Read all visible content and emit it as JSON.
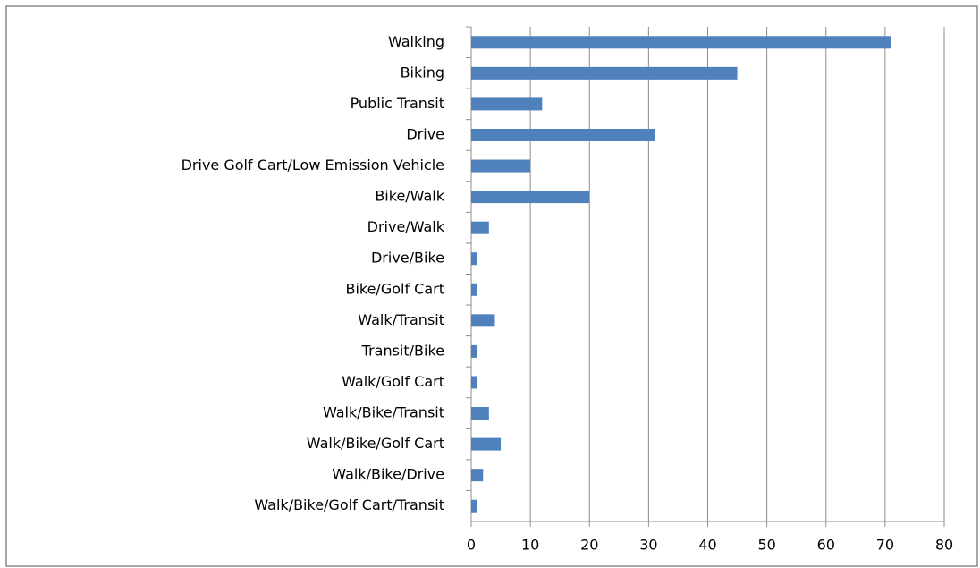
{
  "chart_data": {
    "type": "bar",
    "orientation": "horizontal",
    "categories": [
      "Walking",
      "Biking",
      "Public Transit",
      "Drive",
      "Drive Golf Cart/Low Emission Vehicle",
      "Bike/Walk",
      "Drive/Walk",
      "Drive/Bike",
      "Bike/Golf Cart",
      "Walk/Transit",
      "Transit/Bike",
      "Walk/Golf Cart",
      "Walk/Bike/Transit",
      "Walk/Bike/Golf Cart",
      "Walk/Bike/Drive",
      "Walk/Bike/Golf Cart/Transit"
    ],
    "values": [
      71,
      45,
      12,
      31,
      10,
      20,
      3,
      1,
      1,
      4,
      1,
      1,
      3,
      5,
      2,
      1
    ],
    "color": "#4f81bd",
    "xlim": [
      0,
      80
    ],
    "xticks": [
      0,
      10,
      20,
      30,
      40,
      50,
      60,
      70,
      80
    ],
    "grid": true
  }
}
